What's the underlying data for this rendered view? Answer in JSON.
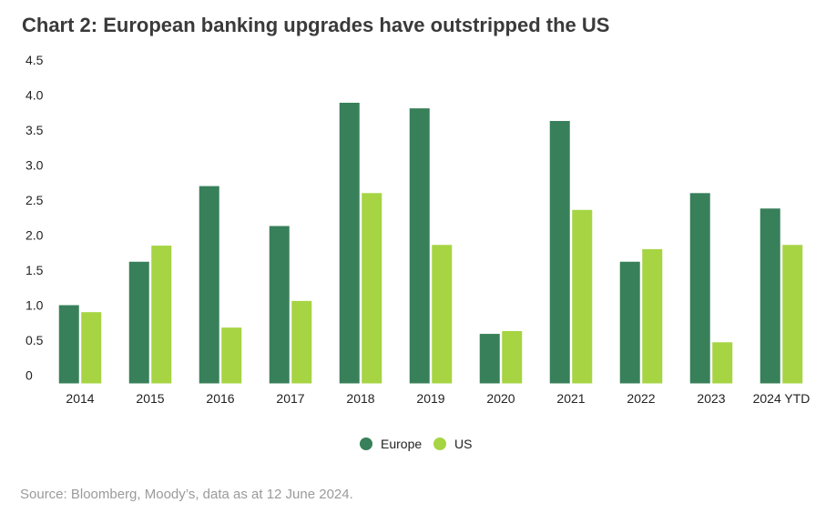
{
  "chart_data": {
    "type": "bar",
    "title": "Chart 2: European banking upgrades have outstripped the US",
    "categories": [
      "2014",
      "2015",
      "2016",
      "2017",
      "2018",
      "2019",
      "2020",
      "2021",
      "2022",
      "2023",
      "2024 YTD"
    ],
    "series": [
      {
        "name": "Europe",
        "color": "#38805a",
        "values": [
          1.0,
          1.62,
          2.7,
          2.13,
          3.89,
          3.81,
          0.59,
          3.63,
          1.62,
          2.6,
          2.38
        ]
      },
      {
        "name": "US",
        "color": "#a6d443",
        "values": [
          0.9,
          1.85,
          0.68,
          1.06,
          2.6,
          1.86,
          0.63,
          2.36,
          1.8,
          0.47,
          1.86
        ]
      }
    ],
    "yticks": [
      "0",
      "0.5",
      "1.0",
      "1.5",
      "2.0",
      "2.5",
      "3.0",
      "3.5",
      "4.0",
      "4.5"
    ],
    "ylim": [
      0,
      4.5
    ],
    "xlabel": "",
    "ylabel": "",
    "legend_position": "bottom-center",
    "grid": false
  },
  "source": "Source: Bloomberg, Moody’s, data as at 12 June 2024."
}
